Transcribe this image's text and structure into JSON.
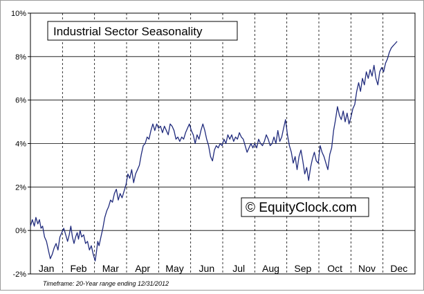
{
  "chart_data": {
    "type": "line",
    "title": "Industrial Sector Seasonality",
    "watermark": "© EquityClock.com",
    "footnote": "Timeframe: 20-Year range ending 12/31/2012",
    "xlabel": "",
    "ylabel": "",
    "categories": [
      "Jan",
      "Feb",
      "Mar",
      "Apr",
      "May",
      "Jun",
      "Jul",
      "Aug",
      "Sep",
      "Oct",
      "Nov",
      "Dec"
    ],
    "xlim": [
      0,
      12
    ],
    "ylim": [
      -2,
      10
    ],
    "yticks": [
      {
        "value": 10,
        "label": "10%"
      },
      {
        "value": 8,
        "label": "8%"
      },
      {
        "value": 6,
        "label": "6%"
      },
      {
        "value": 4,
        "label": "4%"
      },
      {
        "value": 2,
        "label": "2%"
      },
      {
        "value": 0,
        "label": "0%"
      },
      {
        "value": -2,
        "label": "-2%"
      }
    ],
    "grid": {
      "horizontal": "solid",
      "vertical": "dashed"
    },
    "line_color": "#1f2a7c",
    "series": [
      {
        "values": [
          [
            0.0,
            0.2
          ],
          [
            0.06,
            0.5
          ],
          [
            0.12,
            0.2
          ],
          [
            0.17,
            0.6
          ],
          [
            0.23,
            0.3
          ],
          [
            0.28,
            0.5
          ],
          [
            0.33,
            0.1
          ],
          [
            0.38,
            0.2
          ],
          [
            0.44,
            -0.3
          ],
          [
            0.5,
            -0.5
          ],
          [
            0.56,
            -0.9
          ],
          [
            0.62,
            -1.3
          ],
          [
            0.68,
            -1.1
          ],
          [
            0.74,
            -0.8
          ],
          [
            0.8,
            -0.6
          ],
          [
            0.86,
            -0.9
          ],
          [
            0.92,
            -0.3
          ],
          [
            0.98,
            -0.1
          ],
          [
            1.04,
            0.1
          ],
          [
            1.1,
            -0.2
          ],
          [
            1.16,
            -0.5
          ],
          [
            1.21,
            -0.2
          ],
          [
            1.26,
            0.2
          ],
          [
            1.31,
            -0.3
          ],
          [
            1.36,
            -0.6
          ],
          [
            1.41,
            -0.3
          ],
          [
            1.46,
            -0.1
          ],
          [
            1.5,
            -0.4
          ],
          [
            1.55,
            0.0
          ],
          [
            1.6,
            -0.3
          ],
          [
            1.66,
            -0.2
          ],
          [
            1.72,
            -0.6
          ],
          [
            1.78,
            -0.5
          ],
          [
            1.84,
            -0.9
          ],
          [
            1.9,
            -0.7
          ],
          [
            1.96,
            -1.1
          ],
          [
            2.02,
            -1.4
          ],
          [
            2.06,
            -1.0
          ],
          [
            2.1,
            -0.5
          ],
          [
            2.14,
            -0.7
          ],
          [
            2.2,
            -0.3
          ],
          [
            2.26,
            0.1
          ],
          [
            2.32,
            0.6
          ],
          [
            2.38,
            0.9
          ],
          [
            2.44,
            1.1
          ],
          [
            2.5,
            1.4
          ],
          [
            2.56,
            1.3
          ],
          [
            2.62,
            1.7
          ],
          [
            2.68,
            1.9
          ],
          [
            2.74,
            1.4
          ],
          [
            2.8,
            1.7
          ],
          [
            2.86,
            1.5
          ],
          [
            2.92,
            1.8
          ],
          [
            2.98,
            2.1
          ],
          [
            3.04,
            2.6
          ],
          [
            3.1,
            2.4
          ],
          [
            3.16,
            2.8
          ],
          [
            3.22,
            2.2
          ],
          [
            3.28,
            2.6
          ],
          [
            3.34,
            2.8
          ],
          [
            3.4,
            3.0
          ],
          [
            3.46,
            3.5
          ],
          [
            3.52,
            3.9
          ],
          [
            3.58,
            4.0
          ],
          [
            3.64,
            4.3
          ],
          [
            3.7,
            4.2
          ],
          [
            3.76,
            4.6
          ],
          [
            3.82,
            4.9
          ],
          [
            3.88,
            4.6
          ],
          [
            3.94,
            4.9
          ],
          [
            4.0,
            4.7
          ],
          [
            4.06,
            4.8
          ],
          [
            4.12,
            4.5
          ],
          [
            4.18,
            4.8
          ],
          [
            4.24,
            4.6
          ],
          [
            4.3,
            4.4
          ],
          [
            4.36,
            4.9
          ],
          [
            4.42,
            4.8
          ],
          [
            4.48,
            4.6
          ],
          [
            4.54,
            4.2
          ],
          [
            4.6,
            4.3
          ],
          [
            4.66,
            4.1
          ],
          [
            4.72,
            4.3
          ],
          [
            4.78,
            4.2
          ],
          [
            4.84,
            4.5
          ],
          [
            4.9,
            4.7
          ],
          [
            4.96,
            4.9
          ],
          [
            5.02,
            4.6
          ],
          [
            5.08,
            4.4
          ],
          [
            5.14,
            4.0
          ],
          [
            5.2,
            4.4
          ],
          [
            5.26,
            4.2
          ],
          [
            5.32,
            4.6
          ],
          [
            5.38,
            4.9
          ],
          [
            5.44,
            4.6
          ],
          [
            5.5,
            4.2
          ],
          [
            5.56,
            3.9
          ],
          [
            5.62,
            3.4
          ],
          [
            5.68,
            3.2
          ],
          [
            5.74,
            3.7
          ],
          [
            5.8,
            3.9
          ],
          [
            5.86,
            3.8
          ],
          [
            5.92,
            4.0
          ],
          [
            5.98,
            3.9
          ],
          [
            6.04,
            4.2
          ],
          [
            6.1,
            4.0
          ],
          [
            6.16,
            4.4
          ],
          [
            6.22,
            4.2
          ],
          [
            6.28,
            4.4
          ],
          [
            6.34,
            4.1
          ],
          [
            6.4,
            4.3
          ],
          [
            6.46,
            4.2
          ],
          [
            6.52,
            4.5
          ],
          [
            6.58,
            4.3
          ],
          [
            6.64,
            4.2
          ],
          [
            6.7,
            3.9
          ],
          [
            6.76,
            3.6
          ],
          [
            6.82,
            3.8
          ],
          [
            6.88,
            4.0
          ],
          [
            6.94,
            3.8
          ],
          [
            7.0,
            4.0
          ],
          [
            7.06,
            3.8
          ],
          [
            7.12,
            4.2
          ],
          [
            7.18,
            4.0
          ],
          [
            7.24,
            3.9
          ],
          [
            7.3,
            4.1
          ],
          [
            7.36,
            4.4
          ],
          [
            7.42,
            4.2
          ],
          [
            7.48,
            3.9
          ],
          [
            7.54,
            4.0
          ],
          [
            7.6,
            4.3
          ],
          [
            7.66,
            4.0
          ],
          [
            7.72,
            4.6
          ],
          [
            7.78,
            4.1
          ],
          [
            7.84,
            4.3
          ],
          [
            7.9,
            4.7
          ],
          [
            7.96,
            5.1
          ],
          [
            8.02,
            4.4
          ],
          [
            8.08,
            3.9
          ],
          [
            8.14,
            3.6
          ],
          [
            8.2,
            3.1
          ],
          [
            8.26,
            3.4
          ],
          [
            8.32,
            2.8
          ],
          [
            8.38,
            3.4
          ],
          [
            8.44,
            3.7
          ],
          [
            8.5,
            3.2
          ],
          [
            8.56,
            2.6
          ],
          [
            8.62,
            2.9
          ],
          [
            8.68,
            2.3
          ],
          [
            8.74,
            2.9
          ],
          [
            8.8,
            3.3
          ],
          [
            8.86,
            3.6
          ],
          [
            8.92,
            3.2
          ],
          [
            8.98,
            3.1
          ],
          [
            9.04,
            3.9
          ],
          [
            9.1,
            3.6
          ],
          [
            9.16,
            3.4
          ],
          [
            9.22,
            3.1
          ],
          [
            9.28,
            2.8
          ],
          [
            9.34,
            3.5
          ],
          [
            9.4,
            3.8
          ],
          [
            9.46,
            4.6
          ],
          [
            9.52,
            5.1
          ],
          [
            9.58,
            5.7
          ],
          [
            9.64,
            5.3
          ],
          [
            9.7,
            5.1
          ],
          [
            9.76,
            5.5
          ],
          [
            9.82,
            5.0
          ],
          [
            9.88,
            5.4
          ],
          [
            9.94,
            4.9
          ],
          [
            10.0,
            5.2
          ],
          [
            10.06,
            5.6
          ],
          [
            10.12,
            5.8
          ],
          [
            10.18,
            6.4
          ],
          [
            10.24,
            6.8
          ],
          [
            10.3,
            6.4
          ],
          [
            10.36,
            7.0
          ],
          [
            10.42,
            6.7
          ],
          [
            10.48,
            7.3
          ],
          [
            10.54,
            7.0
          ],
          [
            10.6,
            7.4
          ],
          [
            10.66,
            7.1
          ],
          [
            10.72,
            7.6
          ],
          [
            10.78,
            7.0
          ],
          [
            10.84,
            6.7
          ],
          [
            10.9,
            7.3
          ],
          [
            10.96,
            7.5
          ],
          [
            11.02,
            7.3
          ],
          [
            11.08,
            7.7
          ],
          [
            11.14,
            7.9
          ],
          [
            11.2,
            8.2
          ],
          [
            11.26,
            8.4
          ],
          [
            11.32,
            8.5
          ],
          [
            11.38,
            8.6
          ],
          [
            11.44,
            8.7
          ]
        ]
      }
    ]
  }
}
